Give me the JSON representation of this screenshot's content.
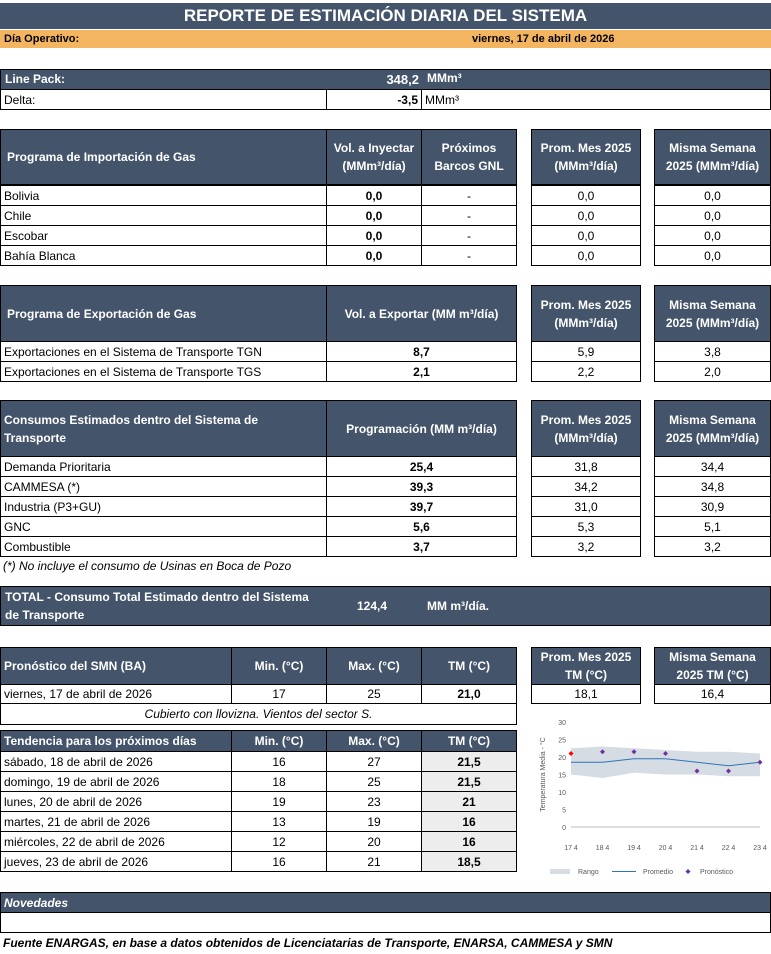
{
  "title": "REPORTE DE ESTIMACIÓN DIARIA DEL SISTEMA",
  "dia_operativo": {
    "label": "Día Operativo:",
    "value": "viernes, 17 de abril de 2026"
  },
  "linepack": {
    "label": "Line Pack:",
    "value": "348,2",
    "unit": "MMm³"
  },
  "delta": {
    "label": "Delta:",
    "value": "-3,5",
    "unit": "MMm³"
  },
  "importacion": {
    "header": "Programa de Importación de Gas",
    "col_vol": "Vol. a Inyectar (MMm³/día)",
    "col_barcos": "Próximos Barcos GNL",
    "col_prom": "Prom. Mes 2025 (MMm³/día)",
    "col_sem": "Misma Semana 2025 (MMm³/día)",
    "rows": [
      {
        "name": "Bolivia",
        "vol": "0,0",
        "barcos": "-",
        "prom": "0,0",
        "sem": "0,0"
      },
      {
        "name": "Chile",
        "vol": "0,0",
        "barcos": "-",
        "prom": "0,0",
        "sem": "0,0"
      },
      {
        "name": "Escobar",
        "vol": "0,0",
        "barcos": "-",
        "prom": "0,0",
        "sem": "0,0"
      },
      {
        "name": "Bahía Blanca",
        "vol": "0,0",
        "barcos": "-",
        "prom": "0,0",
        "sem": "0,0"
      }
    ]
  },
  "exportacion": {
    "header": "Programa de Exportación de Gas",
    "col_vol": "Vol. a Exportar (MM m³/día)",
    "col_prom": "Prom. Mes 2025 (MMm³/día)",
    "col_sem": "Misma Semana 2025 (MMm³/día)",
    "rows": [
      {
        "name": "Exportaciones en el Sistema de Transporte TGN",
        "vol": "8,7",
        "prom": "5,9",
        "sem": "3,8"
      },
      {
        "name": "Exportaciones en el Sistema de Transporte TGS",
        "vol": "2,1",
        "prom": "2,2",
        "sem": "2,0"
      }
    ]
  },
  "consumos": {
    "header": "Consumos Estimados dentro del Sistema de Transporte",
    "col_prog": "Programación (MM m³/día)",
    "col_prom": "Prom. Mes 2025 (MMm³/día)",
    "col_sem": "Misma Semana 2025 (MMm³/día)",
    "rows": [
      {
        "name": "Demanda Prioritaria",
        "prog": "25,4",
        "prom": "31,8",
        "sem": "34,4"
      },
      {
        "name": "CAMMESA (*)",
        "prog": "39,3",
        "prom": "34,2",
        "sem": "34,8"
      },
      {
        "name": "Industria (P3+GU)",
        "prog": "39,7",
        "prom": "31,0",
        "sem": "30,9"
      },
      {
        "name": "GNC",
        "prog": "5,6",
        "prom": "5,3",
        "sem": "5,1"
      },
      {
        "name": "Combustible",
        "prog": "3,7",
        "prom": "3,2",
        "sem": "3,2"
      }
    ],
    "note": "(*) No incluye el consumo de Usinas en Boca de Pozo"
  },
  "total": {
    "label": "TOTAL - Consumo Total Estimado dentro del Sistema de Transporte",
    "value": "124,4",
    "unit": "MM m³/día."
  },
  "pronostico": {
    "header": "Pronóstico del SMN (BA)",
    "col_min": "Min. (°C)",
    "col_max": "Max. (°C)",
    "col_tm": "TM (°C)",
    "col_prom": "Prom. Mes 2025 TM (°C)",
    "col_sem": "Misma Semana 2025 TM (°C)",
    "row": {
      "date": "viernes, 17 de abril de 2026",
      "min": "17",
      "max": "25",
      "tm": "21,0",
      "prom": "18,1",
      "sem": "16,4"
    },
    "desc": "Cubierto con llovizna. Vientos del sector S."
  },
  "tendencia": {
    "header": "Tendencia para los próximos días",
    "col_min": "Min. (°C)",
    "col_max": "Max. (°C)",
    "col_tm": "TM (°C)",
    "rows": [
      {
        "date": "sábado, 18 de abril de 2026",
        "min": "16",
        "max": "27",
        "tm": "21,5"
      },
      {
        "date": "domingo, 19 de abril de 2026",
        "min": "18",
        "max": "25",
        "tm": "21,5"
      },
      {
        "date": "lunes, 20 de abril de 2026",
        "min": "19",
        "max": "23",
        "tm": "21"
      },
      {
        "date": "martes, 21 de abril de 2026",
        "min": "13",
        "max": "19",
        "tm": "16"
      },
      {
        "date": "miércoles, 22 de abril de 2026",
        "min": "12",
        "max": "20",
        "tm": "16"
      },
      {
        "date": "jueves, 23 de abril de 2026",
        "min": "16",
        "max": "21",
        "tm": "18,5"
      }
    ]
  },
  "chart_data": {
    "type": "line",
    "ylabel": "Temperatura Media - °C",
    "ylim": [
      0,
      30
    ],
    "yticks": [
      "0",
      "5",
      "10",
      "15",
      "20",
      "25",
      "30"
    ],
    "categories": [
      "17 4",
      "18 4",
      "19 4",
      "20 4",
      "21 4",
      "22 4",
      "23 4"
    ],
    "rango_min": [
      15,
      14,
      15.5,
      15,
      15,
      14.5,
      14.5
    ],
    "rango_max": [
      22.5,
      23,
      22.5,
      22,
      21.5,
      21.5,
      21
    ],
    "promedio": [
      18.5,
      18.5,
      19.5,
      19.5,
      18.5,
      17.5,
      18.5
    ],
    "pronostico": [
      21,
      21.5,
      21.5,
      21,
      16,
      16,
      18.5
    ],
    "legend": [
      "Rango",
      "Promedio",
      "Pronóstico"
    ],
    "colors": {
      "rango": "#d6dce4",
      "promedio": "#2e75b6",
      "pronostico": "#7030a0",
      "first_point": "#ff0000"
    }
  },
  "novedades": {
    "header": "Novedades"
  },
  "fuente": "Fuente ENARGAS, en base a datos obtenidos de Licenciatarias de Transporte, ENARSA, CAMMESA y SMN"
}
